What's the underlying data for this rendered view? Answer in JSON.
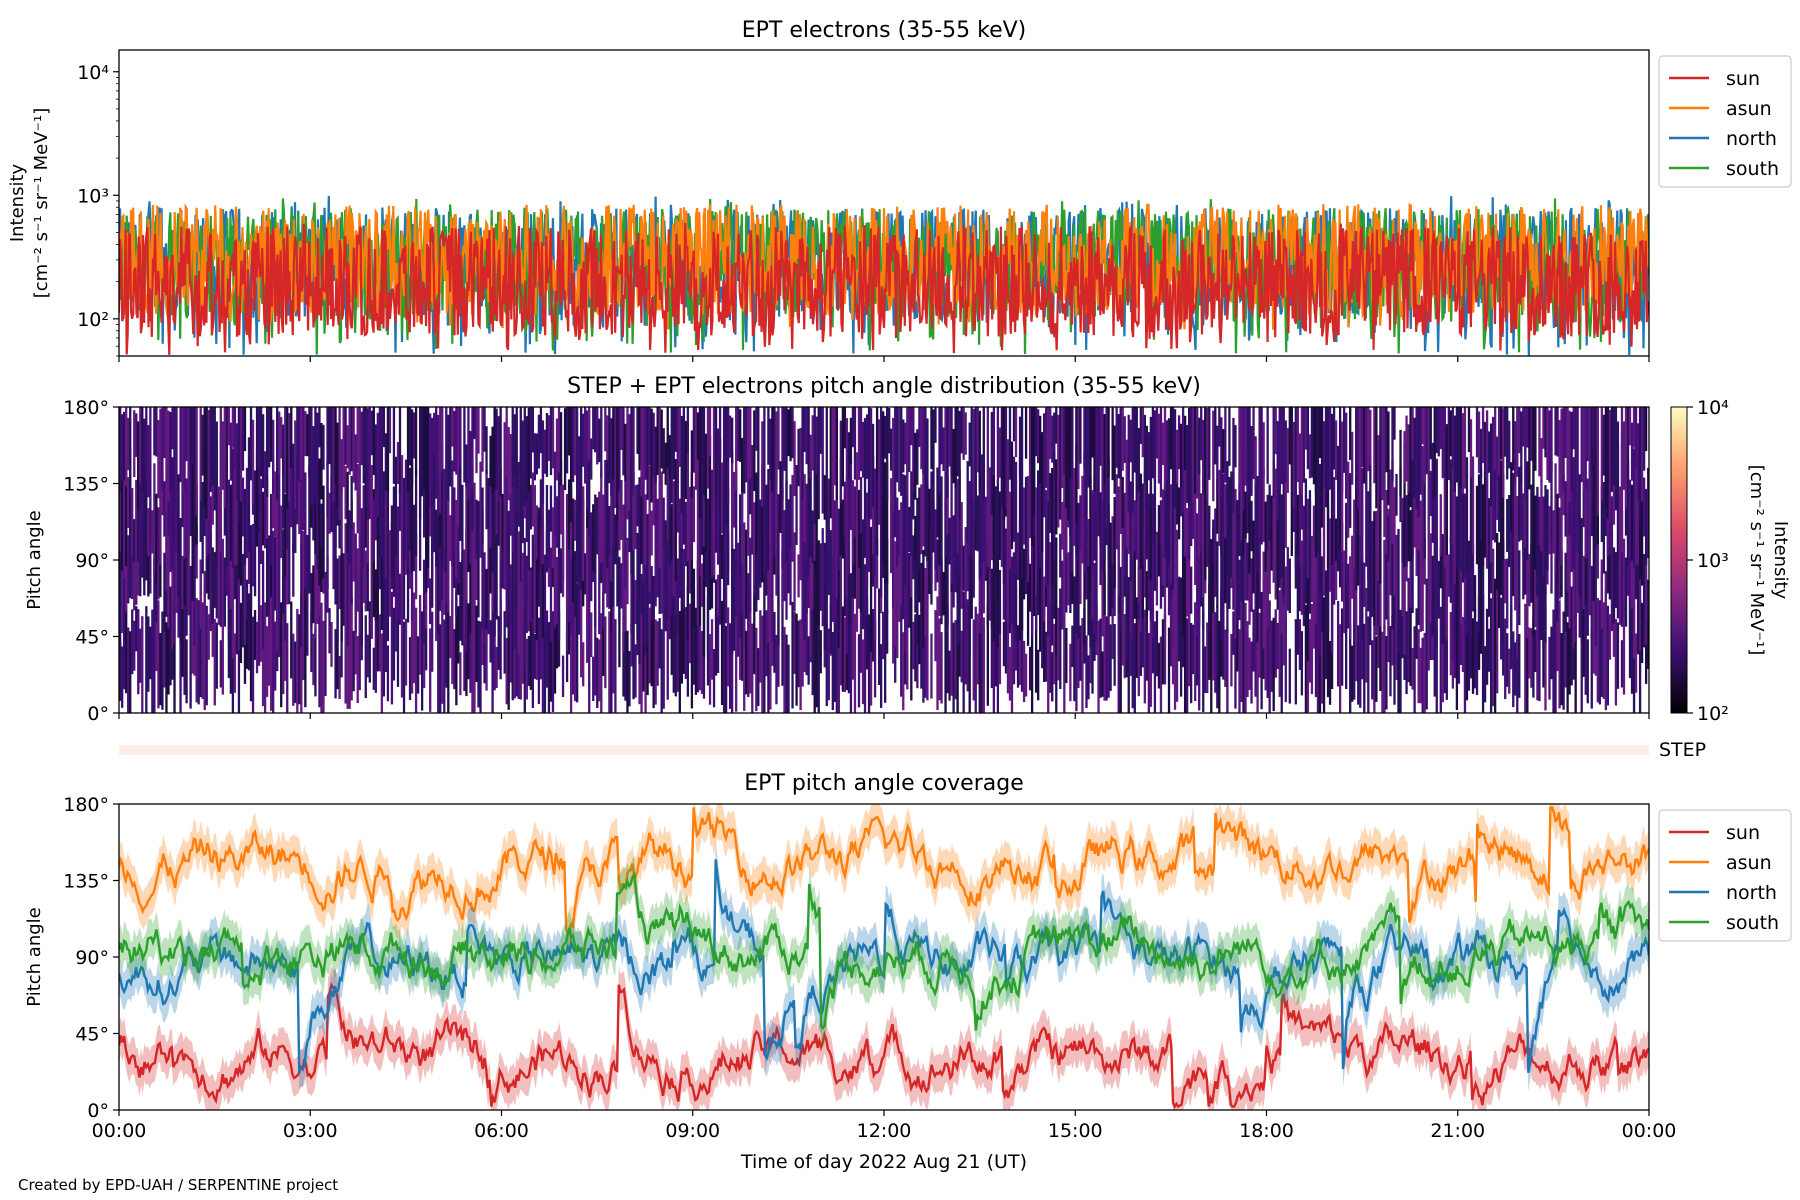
{
  "footer": "Created by EPD-UAH / SERPENTINE project",
  "xaxis": {
    "label": "Time of day 2022 Aug 21 (UT)",
    "range_hours": [
      0,
      24
    ],
    "ticks": [
      {
        "hour": 0,
        "label": "00:00"
      },
      {
        "hour": 3,
        "label": "03:00"
      },
      {
        "hour": 6,
        "label": "06:00"
      },
      {
        "hour": 9,
        "label": "09:00"
      },
      {
        "hour": 12,
        "label": "12:00"
      },
      {
        "hour": 15,
        "label": "15:00"
      },
      {
        "hour": 18,
        "label": "18:00"
      },
      {
        "hour": 21,
        "label": "21:00"
      },
      {
        "hour": 24,
        "label": "00:00"
      }
    ]
  },
  "series_colors": {
    "sun": "#d62728",
    "asun": "#ff7f0e",
    "north": "#1f77b4",
    "south": "#2ca02c"
  },
  "chart_data": [
    {
      "type": "line",
      "title": "EPT electrons (35-55 keV)",
      "ylabel_line1": "Intensity",
      "ylabel_line2": "[cm⁻² s⁻¹ sr⁻¹ MeV⁻¹]",
      "yscale": "log",
      "ylim": [
        50,
        15000
      ],
      "yticks": [
        {
          "value": 100,
          "label": "10²"
        },
        {
          "value": 1000,
          "label": "10³"
        },
        {
          "value": 10000,
          "label": "10⁴"
        }
      ],
      "legend_position": "outside-right",
      "series": [
        {
          "name": "sun",
          "color": "#d62728",
          "typical": 200,
          "min": 50,
          "max": 600
        },
        {
          "name": "asun",
          "color": "#ff7f0e",
          "typical": 300,
          "min": 80,
          "max": 850
        },
        {
          "name": "north",
          "color": "#1f77b4",
          "typical": 280,
          "min": 50,
          "max": 1000
        },
        {
          "name": "south",
          "color": "#2ca02c",
          "typical": 280,
          "min": 50,
          "max": 950
        }
      ],
      "x_hours": [
        0,
        24
      ]
    },
    {
      "type": "heatmap",
      "title": "STEP + EPT electrons pitch angle distribution (35-55 keV)",
      "ylabel": "Pitch angle",
      "ylim": [
        0,
        180
      ],
      "yticks": [
        {
          "value": 0,
          "label": "0°"
        },
        {
          "value": 45,
          "label": "45°"
        },
        {
          "value": 90,
          "label": "90°"
        },
        {
          "value": 135,
          "label": "135°"
        },
        {
          "value": 180,
          "label": "180°"
        }
      ],
      "colorbar": {
        "label_line1": "Intensity",
        "label_line2": "[cm⁻² s⁻¹ sr⁻¹ MeV⁻¹]",
        "scale": "log",
        "range": [
          100,
          10000
        ],
        "ticks": [
          {
            "value": 100,
            "label": "10²"
          },
          {
            "value": 1000,
            "label": "10³"
          },
          {
            "value": 10000,
            "label": "10⁴"
          }
        ],
        "colors": [
          "#000004",
          "#3b0f70",
          "#8c2981",
          "#de4968",
          "#fe9f6d",
          "#fcfdbf"
        ]
      },
      "typical_intensity": 300,
      "x_hours": [
        0,
        24
      ]
    },
    {
      "type": "bar",
      "label": "STEP",
      "color": "#fdeee9",
      "x_hours": [
        0,
        24
      ]
    },
    {
      "type": "line",
      "title": "EPT pitch angle coverage",
      "ylabel": "Pitch angle",
      "ylim": [
        0,
        180
      ],
      "yticks": [
        {
          "value": 0,
          "label": "0°"
        },
        {
          "value": 45,
          "label": "45°"
        },
        {
          "value": 90,
          "label": "90°"
        },
        {
          "value": 135,
          "label": "135°"
        },
        {
          "value": 180,
          "label": "180°"
        }
      ],
      "legend_position": "outside-right",
      "shaded_band": true,
      "series": [
        {
          "name": "sun",
          "color": "#d62728",
          "mean": 32,
          "spread": 20
        },
        {
          "name": "asun",
          "color": "#ff7f0e",
          "mean": 148,
          "spread": 20
        },
        {
          "name": "north",
          "color": "#1f77b4",
          "mean": 85,
          "spread": 30
        },
        {
          "name": "south",
          "color": "#2ca02c",
          "mean": 95,
          "spread": 30
        }
      ],
      "x_hours": [
        0,
        24
      ]
    }
  ]
}
